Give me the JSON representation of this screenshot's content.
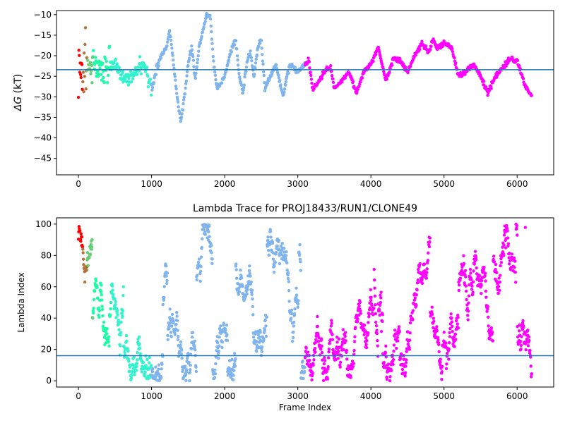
{
  "chart_data": [
    {
      "type": "scatter",
      "title": "",
      "xlabel": "",
      "ylabel": "ΔG (kT)",
      "ylabel_symbol": "ΔG",
      "ylabel_unit": "(kT)",
      "xlim": [
        -300,
        6500
      ],
      "ylim": [
        -49,
        -9
      ],
      "xticks": [
        0,
        1000,
        2000,
        3000,
        4000,
        5000,
        6000
      ],
      "xtick_labels": [
        "0",
        "1000",
        "2000",
        "3000",
        "4000",
        "5000",
        "6000"
      ],
      "yticks": [
        -45,
        -40,
        -35,
        -30,
        -25,
        -20,
        -15,
        -10
      ],
      "ytick_labels": [
        "−45",
        "−40",
        "−35",
        "−30",
        "−25",
        "−20",
        "−15",
        "−10"
      ],
      "hline": -23.4,
      "hline_color": "#1f77b4",
      "grid": false,
      "legend": "none",
      "color_by": "segment of frame index (rainbow colormap: red at start to violet at end)",
      "series_trend": {
        "x": [
          0,
          100,
          200,
          300,
          400,
          500,
          600,
          700,
          800,
          900,
          1000,
          1100,
          1200,
          1250,
          1300,
          1350,
          1400,
          1450,
          1500,
          1550,
          1600,
          1650,
          1700,
          1750,
          1800,
          1850,
          1900,
          2000,
          2100,
          2150,
          2200,
          2250,
          2300,
          2350,
          2400,
          2450,
          2500,
          2550,
          2600,
          2700,
          2750,
          2800,
          2850,
          2900,
          3000,
          3100,
          3150,
          3200,
          3300,
          3400,
          3450,
          3500,
          3600,
          3700,
          3800,
          3900,
          4000,
          4100,
          4200,
          4250,
          4300,
          4400,
          4500,
          4600,
          4700,
          4800,
          4850,
          4900,
          5000,
          5100,
          5200,
          5300,
          5400,
          5500,
          5600,
          5700,
          5800,
          5900,
          6000,
          6100,
          6200
        ],
        "y": [
          -23,
          -22,
          -23,
          -24,
          -23,
          -22,
          -25,
          -26,
          -23,
          -22,
          -28,
          -21,
          -18,
          -14,
          -22,
          -30,
          -36,
          -30,
          -22,
          -18,
          -26,
          -18,
          -14,
          -10,
          -10,
          -22,
          -28,
          -25,
          -18,
          -16,
          -25,
          -29,
          -22,
          -19,
          -25,
          -18,
          -16,
          -28,
          -26,
          -22,
          -26,
          -30,
          -25,
          -22,
          -24,
          -22,
          -21,
          -28,
          -26,
          -23,
          -23,
          -28,
          -26,
          -24,
          -29,
          -24,
          -22,
          -18,
          -26,
          -24,
          -21,
          -21,
          -24,
          -20,
          -17,
          -19,
          -16,
          -18,
          -17,
          -18,
          -25,
          -24,
          -22,
          -25,
          -29,
          -25,
          -23,
          -21,
          -21,
          -27,
          -30
        ]
      }
    },
    {
      "type": "scatter",
      "title": "Lambda Trace for PROJ18433/RUN1/CLONE49",
      "xlabel": "Frame Index",
      "ylabel": "Lambda Index",
      "xlim": [
        -300,
        6500
      ],
      "ylim": [
        -4,
        104
      ],
      "xticks": [
        0,
        1000,
        2000,
        3000,
        4000,
        5000,
        6000
      ],
      "xtick_labels": [
        "0",
        "1000",
        "2000",
        "3000",
        "4000",
        "5000",
        "6000"
      ],
      "yticks": [
        0,
        20,
        40,
        60,
        80,
        100
      ],
      "ytick_labels": [
        "0",
        "20",
        "40",
        "60",
        "80",
        "100"
      ],
      "hline": 16,
      "hline_color": "#1f77b4",
      "grid": false,
      "legend": "none",
      "color_by": "segment of frame index (rainbow colormap: red at start to violet at end)",
      "frame_count": 6200,
      "value_range": [
        0,
        100
      ]
    }
  ]
}
